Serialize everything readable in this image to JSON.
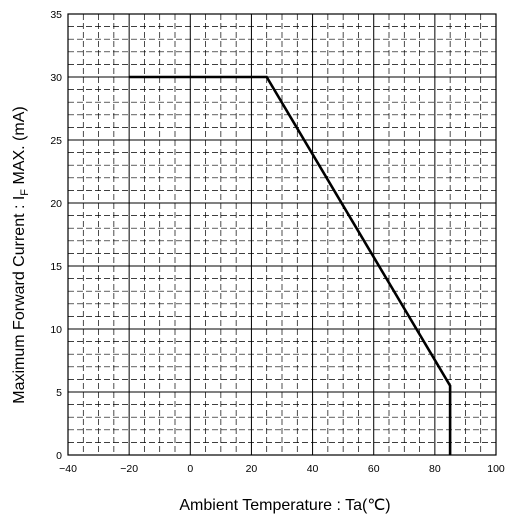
{
  "chart_data": {
    "type": "line",
    "xlabel": "Ambient Temperature : Ta(℃)",
    "ylabel_parts": {
      "before": "Maximum Forward Current : I",
      "sub": "F",
      "after": " MAX. (mA)"
    },
    "xlim": [
      -40,
      100
    ],
    "ylim": [
      0,
      35
    ],
    "x_ticks": [
      -40,
      -20,
      0,
      20,
      40,
      60,
      80,
      100
    ],
    "y_ticks": [
      0,
      5,
      10,
      15,
      20,
      25,
      30,
      35
    ],
    "x_tick_labels": [
      "−40",
      "−20",
      "0",
      "20",
      "40",
      "60",
      "80",
      "100"
    ],
    "y_tick_labels": [
      "0",
      "5",
      "10",
      "15",
      "20",
      "25",
      "30",
      "35"
    ],
    "grid": {
      "major_x_step": 20,
      "major_y_step": 5,
      "minor_x_step": 5,
      "minor_y_step": 1,
      "minor_style": "dashed"
    },
    "series": [
      {
        "x": [
          -20,
          25,
          85,
          85
        ],
        "y": [
          30,
          30,
          5.5,
          0
        ],
        "color": "#000000"
      }
    ]
  }
}
